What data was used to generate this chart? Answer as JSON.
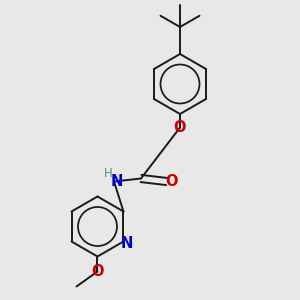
{
  "bg_color": "#e8e8e8",
  "bond_color": "#1a1a1a",
  "O_color": "#cc0000",
  "N_color": "#0000cc",
  "H_color": "#4a8f8f",
  "lw": 1.4,
  "fs": 9.5,
  "figsize": [
    3.0,
    3.0
  ],
  "dpi": 100,
  "xlim": [
    0,
    10
  ],
  "ylim": [
    0,
    10
  ]
}
